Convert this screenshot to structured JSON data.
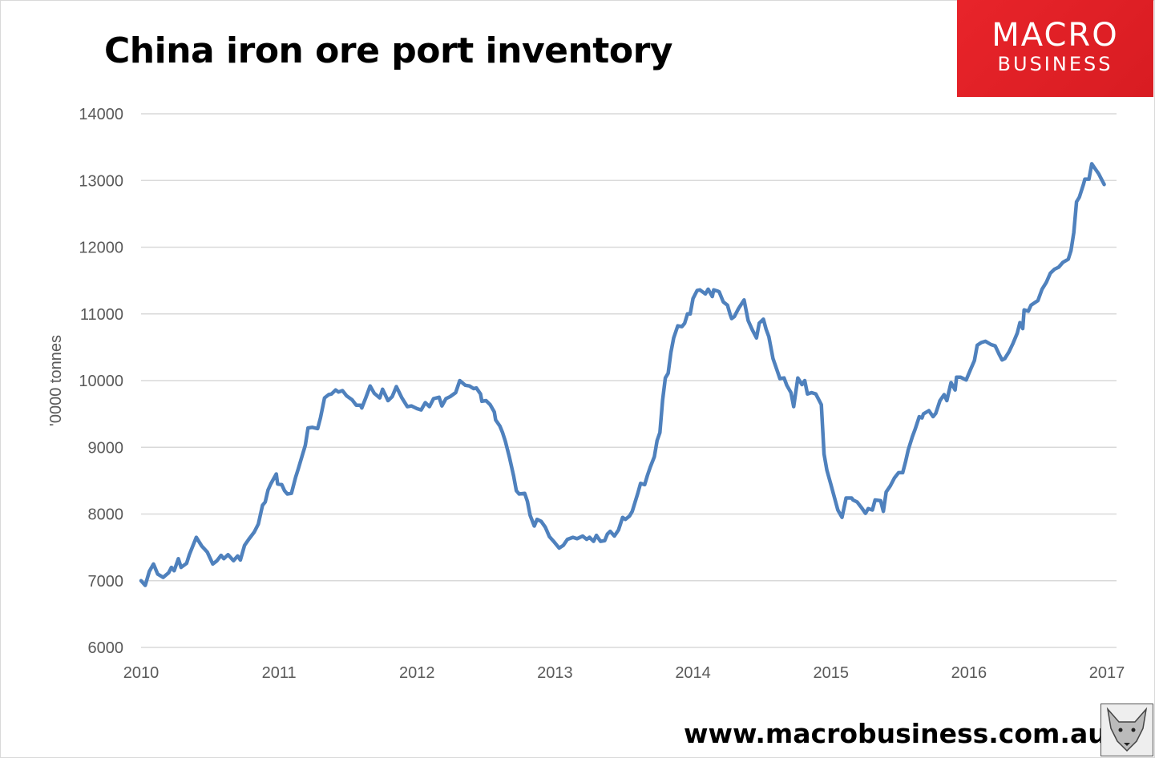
{
  "header": {
    "title": "China iron ore port inventory"
  },
  "logo": {
    "line1": "MACRO",
    "line2": "BUSINESS",
    "color": "#e0232a"
  },
  "footer": {
    "url": "www.macrobusiness.com.au",
    "mascot_icon": "fox-icon"
  },
  "chart_data": {
    "type": "line",
    "title": "China iron ore port inventory",
    "xlabel": "",
    "ylabel": "'0000 tonnes",
    "xlim": [
      2010,
      2017
    ],
    "ylim": [
      6000,
      14000
    ],
    "xticks": [
      "2010",
      "2011",
      "2012",
      "2013",
      "2014",
      "2015",
      "2016",
      "2017"
    ],
    "yticks": [
      "6000",
      "7000",
      "8000",
      "9000",
      "10000",
      "11000",
      "12000",
      "13000",
      "14000"
    ],
    "grid": "horizontal",
    "line_color": "#4f81bd",
    "x": [
      2010.0,
      2010.03,
      2010.06,
      2010.09,
      2010.12,
      2010.16,
      2010.2,
      2010.22,
      2010.24,
      2010.27,
      2010.29,
      2010.33,
      2010.35,
      2010.4,
      2010.44,
      2010.48,
      2010.52,
      2010.55,
      2010.58,
      2010.6,
      2010.63,
      2010.67,
      2010.7,
      2010.72,
      2010.75,
      2010.78,
      2010.82,
      2010.85,
      2010.88,
      2010.9,
      2010.92,
      2010.94,
      2010.98,
      2010.99,
      2011.02,
      2011.04,
      2011.06,
      2011.09,
      2011.12,
      2011.14,
      2011.17,
      2011.19,
      2011.21,
      2011.24,
      2011.28,
      2011.3,
      2011.33,
      2011.36,
      2011.38,
      2011.41,
      2011.43,
      2011.46,
      2011.49,
      2011.53,
      2011.56,
      2011.59,
      2011.6,
      2011.63,
      2011.66,
      2011.69,
      2011.73,
      2011.75,
      2011.79,
      2011.82,
      2011.85,
      2011.89,
      2011.93,
      2011.96,
      2012.0,
      2012.03,
      2012.06,
      2012.09,
      2012.12,
      2012.16,
      2012.18,
      2012.21,
      2012.24,
      2012.28,
      2012.31,
      2012.35,
      2012.38,
      2012.41,
      2012.43,
      2012.46,
      2012.47,
      2012.5,
      2012.53,
      2012.56,
      2012.57,
      2012.6,
      2012.62,
      2012.64,
      2012.67,
      2012.7,
      2012.72,
      2012.74,
      2012.78,
      2012.8,
      2012.82,
      2012.85,
      2012.87,
      2012.9,
      2012.93,
      2012.96,
      2012.99,
      2013.03,
      2013.06,
      2013.09,
      2013.13,
      2013.16,
      2013.2,
      2013.23,
      2013.25,
      2013.28,
      2013.3,
      2013.33,
      2013.36,
      2013.38,
      2013.4,
      2013.43,
      2013.46,
      2013.49,
      2013.51,
      2013.54,
      2013.56,
      2013.6,
      2013.62,
      2013.65,
      2013.67,
      2013.69,
      2013.72,
      2013.74,
      2013.76,
      2013.78,
      2013.8,
      2013.82,
      2013.84,
      2013.86,
      2013.89,
      2013.92,
      2013.94,
      2013.96,
      2013.98,
      2014.0,
      2014.03,
      2014.05,
      2014.09,
      2014.11,
      2014.14,
      2014.15,
      2014.18,
      2014.19,
      2014.22,
      2014.25,
      2014.27,
      2014.28,
      2014.3,
      2014.33,
      2014.37,
      2014.4,
      2014.43,
      2014.46,
      2014.48,
      2014.51,
      2014.53,
      2014.55,
      2014.58,
      2014.61,
      2014.63,
      2014.66,
      2014.68,
      2014.71,
      2014.73,
      2014.76,
      2014.79,
      2014.81,
      2014.83,
      2014.86,
      2014.89,
      2014.93,
      2014.95,
      2014.97,
      2015.0,
      2015.05,
      2015.08,
      2015.11,
      2015.15,
      2015.16,
      2015.19,
      2015.22,
      2015.25,
      2015.27,
      2015.3,
      2015.32,
      2015.36,
      2015.38,
      2015.4,
      2015.43,
      2015.46,
      2015.49,
      2015.52,
      2015.54,
      2015.56,
      2015.59,
      2015.61,
      2015.64,
      2015.66,
      2015.67,
      2015.71,
      2015.74,
      2015.76,
      2015.79,
      2015.82,
      2015.84,
      2015.87,
      2015.9,
      2015.91,
      2015.94,
      2015.98,
      2016.01,
      2016.04,
      2016.06,
      2016.09,
      2016.12,
      2016.16,
      2016.19,
      2016.22,
      2016.24,
      2016.26,
      2016.29,
      2016.32,
      2016.35,
      2016.37,
      2016.39,
      2016.4,
      2016.43,
      2016.45,
      2016.5,
      2016.53,
      2016.56,
      2016.59,
      2016.62,
      2016.65,
      2016.68,
      2016.72,
      2016.74,
      2016.76,
      2016.78,
      2016.8,
      2016.83,
      2016.84,
      2016.87,
      2016.89,
      2016.91,
      2016.94,
      2016.98
    ],
    "y": [
      7000,
      6930,
      7140,
      7250,
      7100,
      7050,
      7120,
      7200,
      7150,
      7330,
      7200,
      7260,
      7390,
      7650,
      7520,
      7430,
      7250,
      7300,
      7380,
      7330,
      7390,
      7300,
      7370,
      7310,
      7530,
      7620,
      7730,
      7850,
      8130,
      8180,
      8360,
      8450,
      8600,
      8450,
      8440,
      8350,
      8300,
      8310,
      8550,
      8680,
      8890,
      9030,
      9290,
      9300,
      9280,
      9440,
      9740,
      9790,
      9800,
      9860,
      9830,
      9850,
      9770,
      9710,
      9630,
      9630,
      9590,
      9750,
      9920,
      9810,
      9740,
      9870,
      9700,
      9760,
      9910,
      9740,
      9610,
      9620,
      9580,
      9560,
      9670,
      9610,
      9730,
      9750,
      9620,
      9730,
      9760,
      9820,
      10000,
      9930,
      9920,
      9880,
      9890,
      9800,
      9690,
      9700,
      9640,
      9530,
      9410,
      9320,
      9220,
      9090,
      8850,
      8570,
      8350,
      8300,
      8310,
      8190,
      7980,
      7820,
      7920,
      7890,
      7800,
      7660,
      7590,
      7490,
      7530,
      7620,
      7650,
      7630,
      7670,
      7620,
      7650,
      7590,
      7680,
      7590,
      7600,
      7700,
      7740,
      7670,
      7760,
      7950,
      7920,
      7970,
      8040,
      8310,
      8460,
      8440,
      8580,
      8700,
      8860,
      9100,
      9220,
      9710,
      10040,
      10110,
      10420,
      10640,
      10820,
      10810,
      10860,
      11000,
      11000,
      11230,
      11350,
      11360,
      11300,
      11370,
      11260,
      11360,
      11340,
      11330,
      11180,
      11130,
      10990,
      10930,
      10960,
      11080,
      11210,
      10900,
      10760,
      10640,
      10860,
      10920,
      10770,
      10660,
      10330,
      10150,
      10030,
      10040,
      9930,
      9820,
      9610,
      10040,
      9940,
      10000,
      9800,
      9820,
      9800,
      9640,
      8900,
      8660,
      8440,
      8060,
      7950,
      8240,
      8240,
      8210,
      8180,
      8100,
      8010,
      8080,
      8060,
      8210,
      8200,
      8040,
      8330,
      8420,
      8540,
      8620,
      8620,
      8780,
      8960,
      9160,
      9270,
      9460,
      9440,
      9500,
      9550,
      9460,
      9510,
      9700,
      9790,
      9700,
      9970,
      9860,
      10050,
      10050,
      10010,
      10160,
      10300,
      10530,
      10570,
      10590,
      10540,
      10520,
      10390,
      10310,
      10330,
      10430,
      10560,
      10710,
      10870,
      10780,
      11060,
      11040,
      11130,
      11200,
      11370,
      11470,
      11610,
      11670,
      11700,
      11770,
      11820,
      11950,
      12220,
      12680,
      12750,
      12940,
      13020,
      13020,
      13250,
      13190,
      13100,
      12940
    ]
  }
}
